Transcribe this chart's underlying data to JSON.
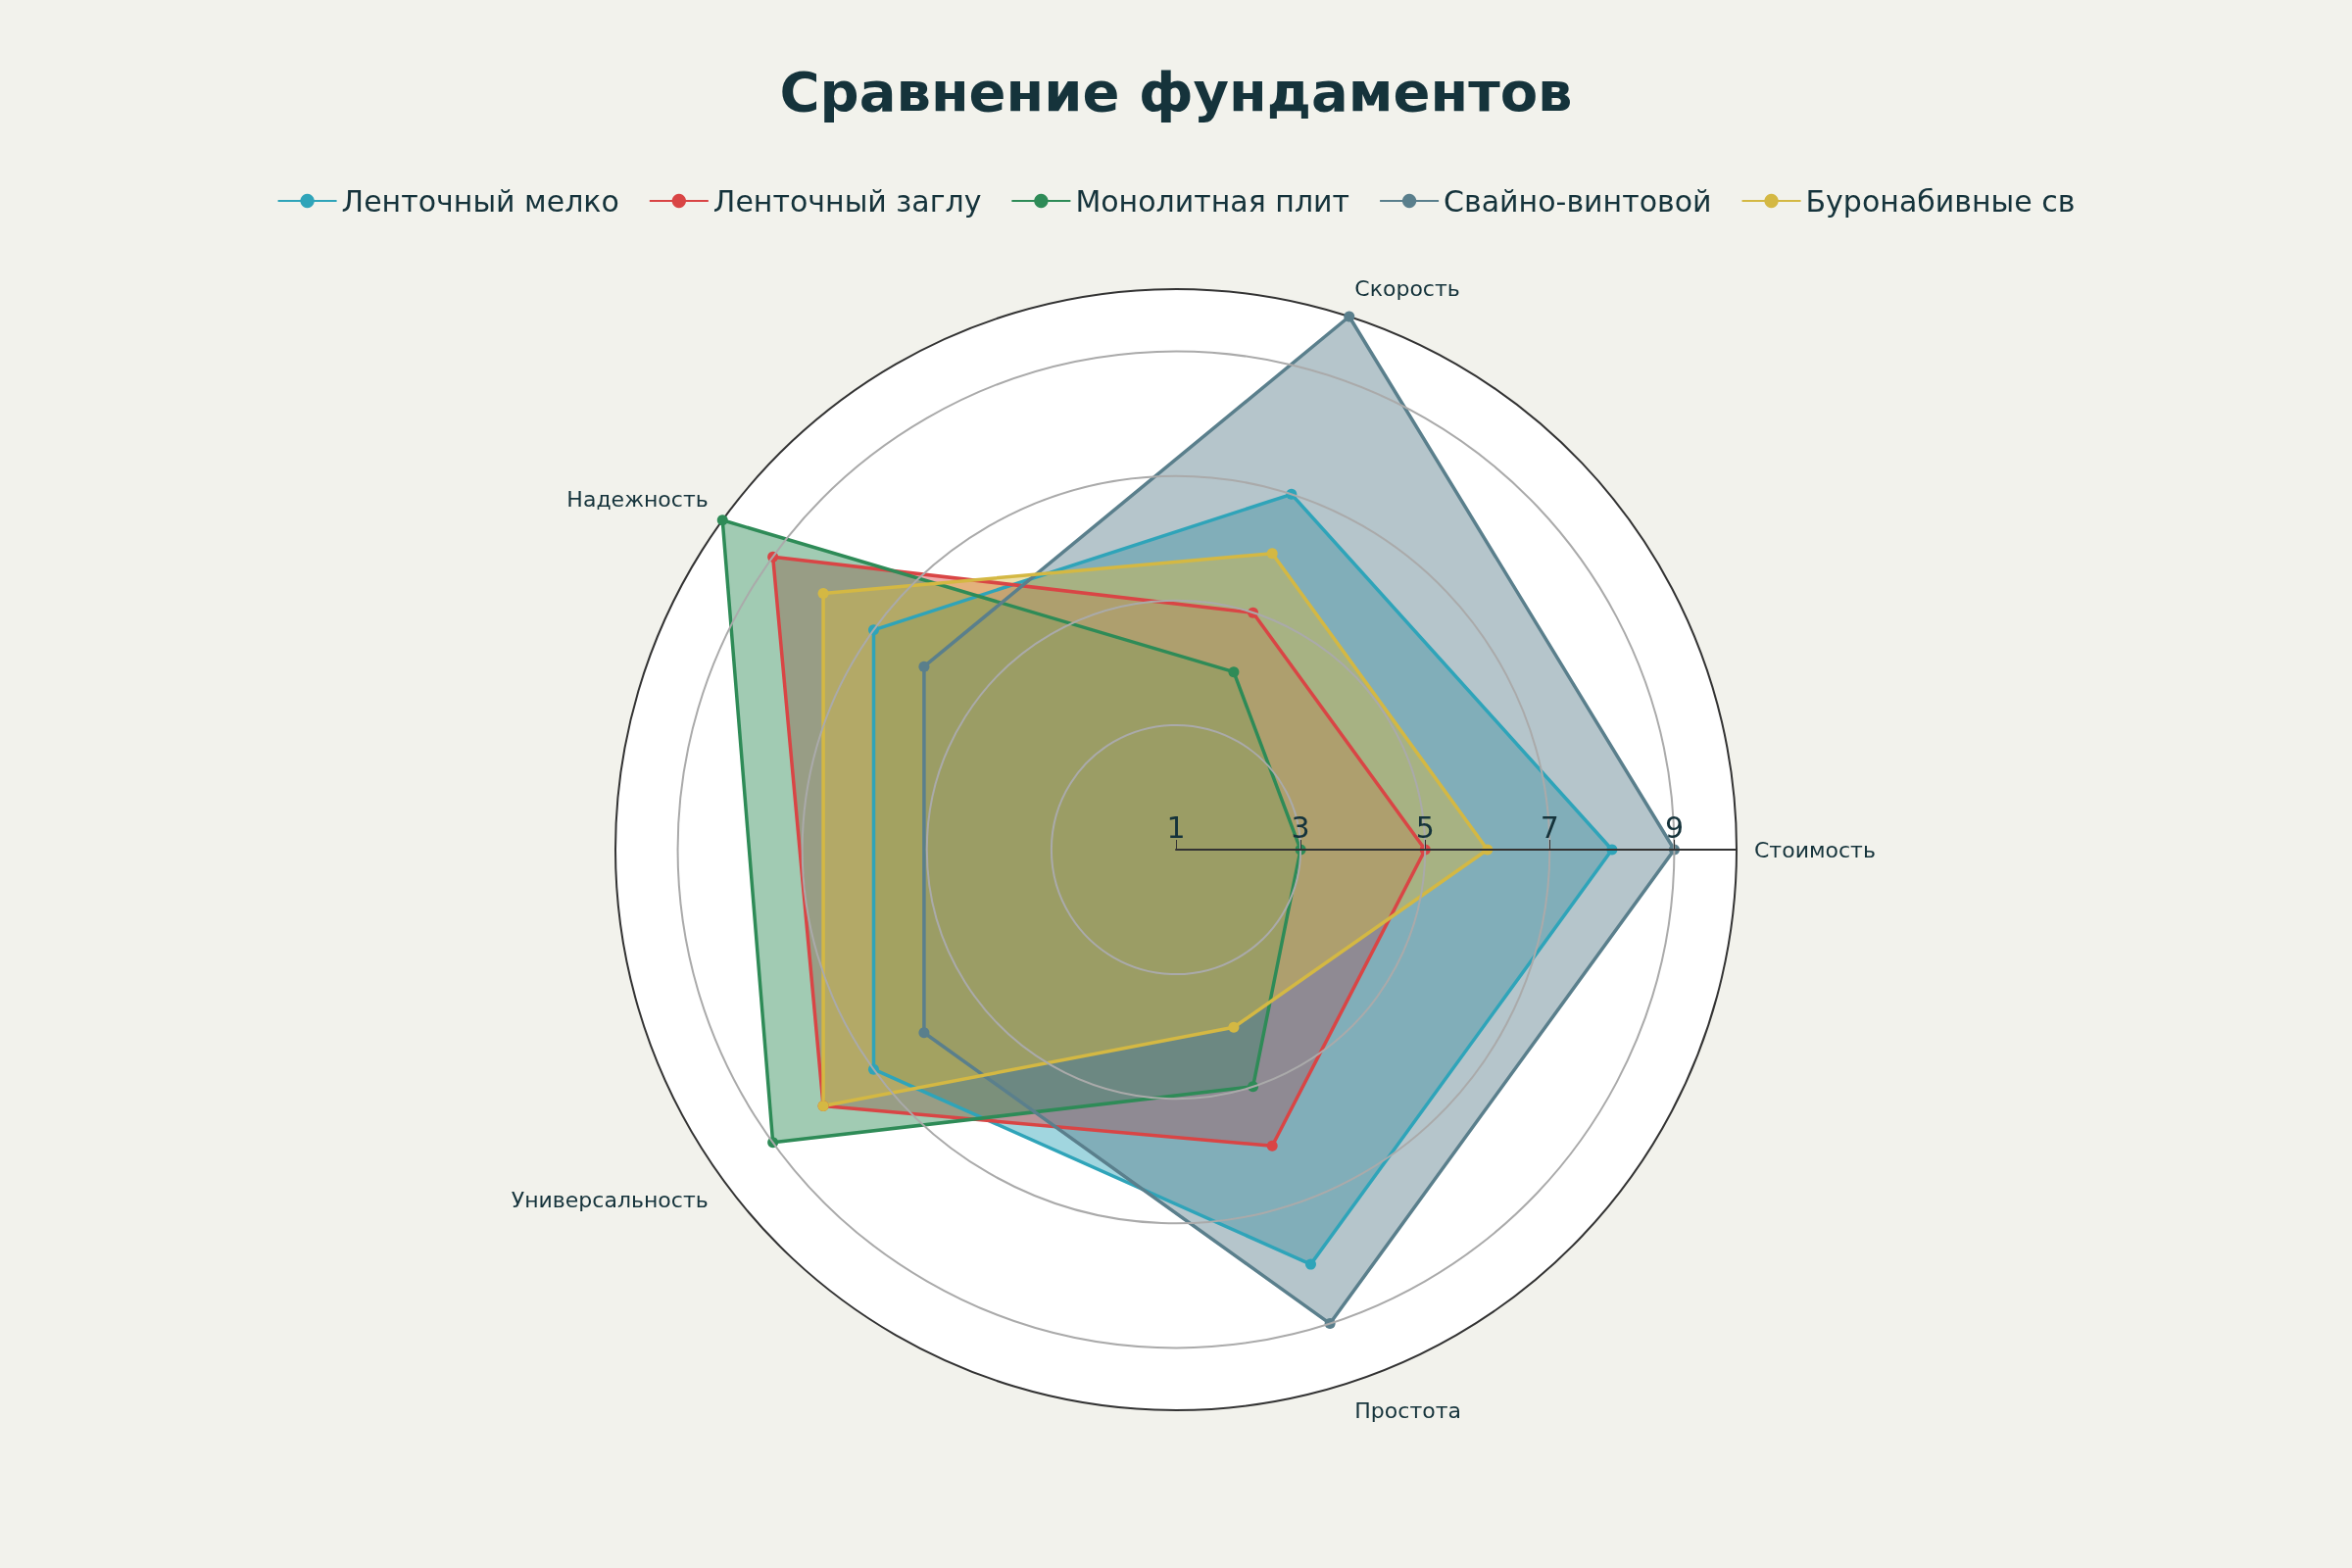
{
  "chart_data": {
    "type": "radar",
    "title": "Сравнение фундаментов",
    "categories": [
      "Скорость",
      "Стоимость",
      "Простота",
      "Универсальность",
      "Надежность"
    ],
    "ylim": [
      1,
      10
    ],
    "yticks": [
      1,
      3,
      5,
      7,
      9
    ],
    "legend": "top",
    "marker": "circle",
    "grid": true,
    "series": [
      {
        "name": "Ленточный мелко",
        "color": "#2fa4b9",
        "values": [
          7,
          8,
          8,
          7,
          7
        ]
      },
      {
        "name": "Ленточный заглу",
        "color": "#d94545",
        "values": [
          5,
          5,
          6,
          8,
          9
        ]
      },
      {
        "name": "Монолитная плит",
        "color": "#2e8b57",
        "values": [
          4,
          3,
          5,
          9,
          10
        ]
      },
      {
        "name": "Свайно-винтовой",
        "color": "#5a7f8c",
        "values": [
          10,
          9,
          9,
          6,
          6
        ]
      },
      {
        "name": "Буронабивные св",
        "color": "#d4b843",
        "values": [
          6,
          6,
          4,
          8,
          8
        ]
      }
    ]
  }
}
